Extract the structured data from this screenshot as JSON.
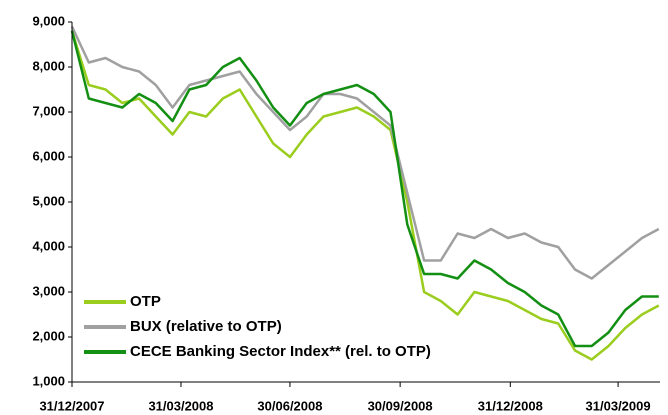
{
  "chart_data": {
    "type": "line",
    "x": [
      "31/12/2007",
      "14/01/2008",
      "28/01/2008",
      "11/02/2008",
      "25/02/2008",
      "10/03/2008",
      "24/03/2008",
      "07/04/2008",
      "21/04/2008",
      "05/05/2008",
      "19/05/2008",
      "02/06/2008",
      "16/06/2008",
      "30/06/2008",
      "14/07/2008",
      "28/07/2008",
      "11/08/2008",
      "25/08/2008",
      "08/09/2008",
      "22/09/2008",
      "06/10/2008",
      "20/10/2008",
      "03/11/2008",
      "17/11/2008",
      "01/12/2008",
      "15/12/2008",
      "29/12/2008",
      "12/01/2009",
      "26/01/2009",
      "09/02/2009",
      "23/02/2009",
      "09/03/2009",
      "23/03/2009",
      "06/04/2009",
      "20/04/2009",
      "04/05/2009"
    ],
    "series": [
      {
        "name": "OTP",
        "color": "#9acd1e",
        "values": [
          8800,
          7600,
          7500,
          7200,
          7300,
          6900,
          6500,
          7000,
          6900,
          7300,
          7500,
          6900,
          6300,
          6000,
          6500,
          6900,
          7000,
          7100,
          6900,
          6600,
          5000,
          3000,
          2800,
          2500,
          3000,
          2900,
          2800,
          2600,
          2400,
          2300,
          1700,
          1500,
          1800,
          2200,
          2500,
          2700
        ]
      },
      {
        "name": "BUX (relative to OTP)",
        "color": "#a0a0a0",
        "values": [
          8900,
          8100,
          8200,
          8000,
          7900,
          7600,
          7100,
          7600,
          7700,
          7800,
          7900,
          7400,
          7000,
          6600,
          6900,
          7400,
          7400,
          7300,
          7000,
          6700,
          5200,
          3700,
          3700,
          4300,
          4200,
          4400,
          4200,
          4300,
          4100,
          4000,
          3500,
          3300,
          3600,
          3900,
          4200,
          4400
        ]
      },
      {
        "name": "CECE Banking Sector Index**  (rel. to OTP)",
        "color": "#138f13",
        "values": [
          8800,
          7300,
          7200,
          7100,
          7400,
          7200,
          6800,
          7500,
          7600,
          8000,
          8200,
          7700,
          7100,
          6700,
          7200,
          7400,
          7500,
          7600,
          7400,
          7000,
          4500,
          3400,
          3400,
          3300,
          3700,
          3500,
          3200,
          3000,
          2700,
          2500,
          1800,
          1800,
          2100,
          2600,
          2900,
          2900
        ]
      }
    ],
    "xlim": [
      "31/12/2007",
      "05/05/2009"
    ],
    "xticks": [
      "31/12/2007",
      "31/03/2008",
      "30/06/2008",
      "30/09/2008",
      "31/12/2008",
      "31/03/2009"
    ],
    "ylim": [
      1000,
      9000
    ],
    "yticks": [
      {
        "value": 1000,
        "label": "1,000"
      },
      {
        "value": 2000,
        "label": "2,000"
      },
      {
        "value": 3000,
        "label": "3,000"
      },
      {
        "value": 4000,
        "label": "4,000"
      },
      {
        "value": 5000,
        "label": "5,000"
      },
      {
        "value": 6000,
        "label": "6,000"
      },
      {
        "value": 7000,
        "label": "7,000"
      },
      {
        "value": 8000,
        "label": "8,000"
      },
      {
        "value": 9000,
        "label": "9,000"
      }
    ],
    "grid": false,
    "legend": "lower left"
  }
}
